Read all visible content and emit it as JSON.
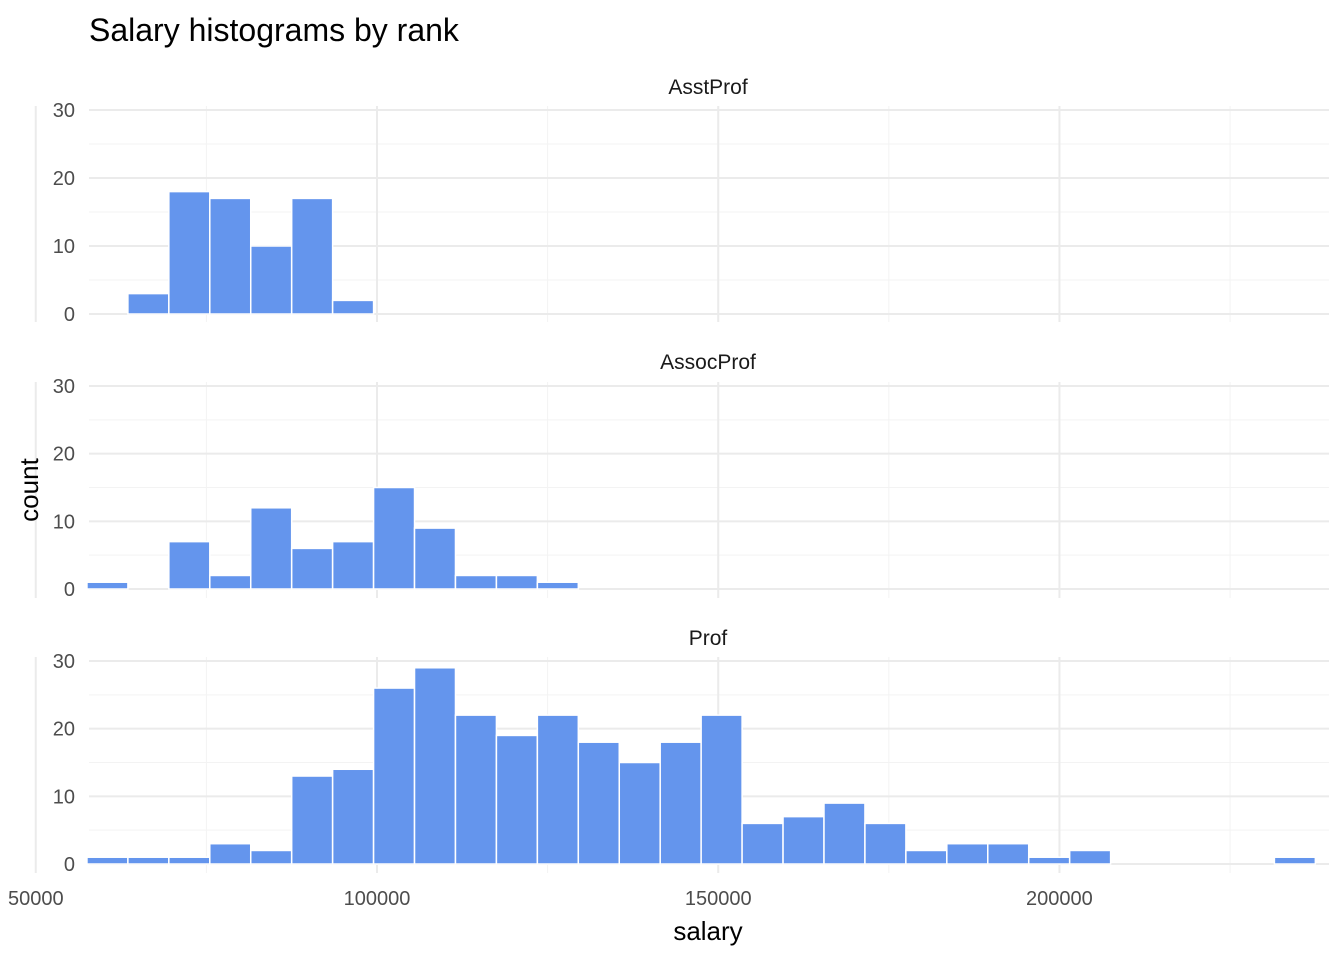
{
  "chart_data": {
    "type": "bar",
    "title": "Salary histograms by rank",
    "xlabel": "salary",
    "ylabel": "count",
    "xlim": [
      57800,
      239500
    ],
    "ylim": [
      0,
      30
    ],
    "x_ticks": [
      50000,
      100000,
      150000,
      200000
    ],
    "x_tick_labels": [
      "50000",
      "100000",
      "150000",
      "200000"
    ],
    "y_ticks": [
      0,
      10,
      20,
      30
    ],
    "y_tick_labels": [
      "0",
      "10",
      "20",
      "30"
    ],
    "bin_width": 6000,
    "bar_color": "#6495ED",
    "grid": true,
    "legend": "none",
    "facets": [
      {
        "name": "AsstProf",
        "bins": [
          {
            "x": 66500,
            "count": 3
          },
          {
            "x": 72500,
            "count": 18
          },
          {
            "x": 78500,
            "count": 17
          },
          {
            "x": 84500,
            "count": 10
          },
          {
            "x": 90500,
            "count": 17
          },
          {
            "x": 96500,
            "count": 2
          }
        ]
      },
      {
        "name": "AssocProf",
        "bins": [
          {
            "x": 60500,
            "count": 1
          },
          {
            "x": 72500,
            "count": 7
          },
          {
            "x": 78500,
            "count": 2
          },
          {
            "x": 84500,
            "count": 12
          },
          {
            "x": 90500,
            "count": 6
          },
          {
            "x": 96500,
            "count": 7
          },
          {
            "x": 102500,
            "count": 15
          },
          {
            "x": 108500,
            "count": 9
          },
          {
            "x": 114500,
            "count": 2
          },
          {
            "x": 120500,
            "count": 2
          },
          {
            "x": 126500,
            "count": 1
          }
        ]
      },
      {
        "name": "Prof",
        "bins": [
          {
            "x": 60500,
            "count": 1
          },
          {
            "x": 66500,
            "count": 1
          },
          {
            "x": 72500,
            "count": 1
          },
          {
            "x": 78500,
            "count": 3
          },
          {
            "x": 84500,
            "count": 2
          },
          {
            "x": 90500,
            "count": 13
          },
          {
            "x": 96500,
            "count": 14
          },
          {
            "x": 102500,
            "count": 26
          },
          {
            "x": 108500,
            "count": 29
          },
          {
            "x": 114500,
            "count": 22
          },
          {
            "x": 120500,
            "count": 19
          },
          {
            "x": 126500,
            "count": 22
          },
          {
            "x": 132500,
            "count": 18
          },
          {
            "x": 138500,
            "count": 15
          },
          {
            "x": 144500,
            "count": 18
          },
          {
            "x": 150500,
            "count": 22
          },
          {
            "x": 156500,
            "count": 6
          },
          {
            "x": 162500,
            "count": 7
          },
          {
            "x": 168500,
            "count": 9
          },
          {
            "x": 174500,
            "count": 6
          },
          {
            "x": 180500,
            "count": 2
          },
          {
            "x": 186500,
            "count": 3
          },
          {
            "x": 192500,
            "count": 3
          },
          {
            "x": 198500,
            "count": 1
          },
          {
            "x": 204500,
            "count": 2
          },
          {
            "x": 234500,
            "count": 1
          }
        ]
      }
    ]
  }
}
